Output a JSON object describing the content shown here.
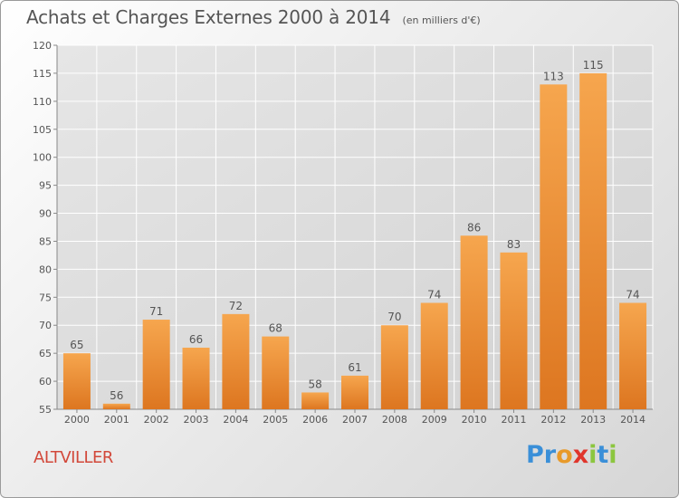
{
  "title": "Achats et Charges Externes 2000 à 2014",
  "unit": "(en milliers d'€)",
  "commune": "ALTVILLER",
  "logo": {
    "text": "Proxiti",
    "letters": [
      {
        "ch": "P",
        "color": "#3a8fd8"
      },
      {
        "ch": "r",
        "color": "#3a8fd8"
      },
      {
        "ch": "o",
        "color": "#e89a2a"
      },
      {
        "ch": "x",
        "color": "#e0352b"
      },
      {
        "ch": "i",
        "color": "#8cc63f"
      },
      {
        "ch": "t",
        "color": "#3a8fd8"
      },
      {
        "ch": "i",
        "color": "#8cc63f"
      }
    ]
  },
  "colors": {
    "bar_light": "#f6a64e",
    "bar_dark": "#e07a22",
    "text": "#555555",
    "grid": "#ffffff"
  },
  "chart_data": {
    "type": "bar",
    "title": "Achats et Charges Externes 2000 à 2014",
    "xlabel": "",
    "ylabel": "",
    "ylim": [
      55,
      120
    ],
    "yticks": [
      55,
      60,
      65,
      70,
      75,
      80,
      85,
      90,
      95,
      100,
      105,
      110,
      115,
      120
    ],
    "grid": true,
    "categories": [
      "2000",
      "2001",
      "2002",
      "2003",
      "2004",
      "2005",
      "2006",
      "2007",
      "2008",
      "2009",
      "2010",
      "2011",
      "2012",
      "2013",
      "2014"
    ],
    "values": [
      65,
      56,
      71,
      66,
      72,
      68,
      58,
      61,
      70,
      74,
      86,
      83,
      113,
      115,
      74
    ]
  }
}
